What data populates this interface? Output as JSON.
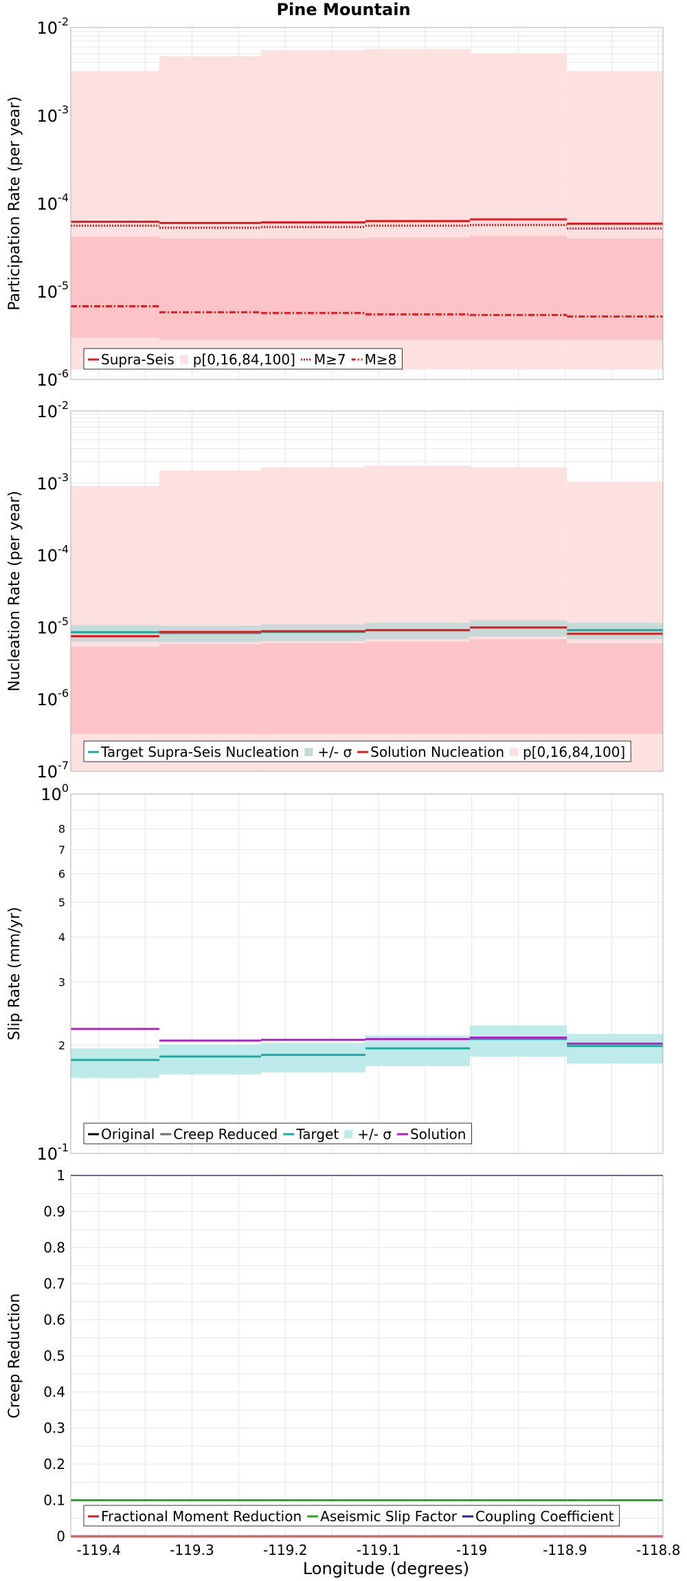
{
  "title": "Pine Mountain",
  "xaxis": {
    "label": "Longitude (degrees)",
    "range": [
      -119.43,
      -118.795
    ],
    "ticks": [
      "-119.4",
      "-119.3",
      "-119.2",
      "-119.1",
      "-119",
      "-118.9",
      "-118.8"
    ],
    "tick_values": [
      -119.4,
      -119.3,
      -119.2,
      -119.1,
      -119.0,
      -118.9,
      -118.8
    ]
  },
  "segments": [
    [
      -119.43,
      -119.335
    ],
    [
      -119.335,
      -119.226
    ],
    [
      -119.226,
      -119.114
    ],
    [
      -119.114,
      -119.002
    ],
    [
      -119.002,
      -118.898
    ],
    [
      -118.898,
      -118.795
    ]
  ],
  "colors": {
    "red": "#e31a1c",
    "pink_band": "#fde0e0",
    "pink_inner": "#fcc4c6",
    "teal": "#1ba9a0",
    "teal_band": "#bfeaea",
    "grey": "#6e6e6e",
    "grey_band": "#c9d9d9",
    "purple": "#b020c8",
    "green": "#22aa22",
    "blue": "#1f1f9f",
    "black": "#000000",
    "grid": "#e6e6e6"
  },
  "chart_data": [
    {
      "type": "line",
      "step": true,
      "ylabel": "Participation Rate (per year)",
      "yscale": "log",
      "ylim": [
        1e-06,
        0.01
      ],
      "ytick_exponents": [
        -6,
        -5,
        -4,
        -3,
        -2
      ],
      "series": [
        {
          "name": "Supra-Seis",
          "values": [
            6.2e-05,
            6e-05,
            6.1e-05,
            6.3e-05,
            6.6e-05,
            5.9e-05
          ]
        },
        {
          "name": "p[0,16,84,100]",
          "outer_low": [
            1.3e-06,
            1.3e-06,
            1.3e-06,
            1.3e-06,
            1.3e-06,
            1.3e-06
          ],
          "outer_high": [
            0.0032,
            0.0047,
            0.0055,
            0.0057,
            0.0051,
            0.0032
          ],
          "inner_low": [
            3e-06,
            2.8e-06,
            2.8e-06,
            2.8e-06,
            2.8e-06,
            2.8e-06
          ],
          "inner_high": [
            4.2e-05,
            4e-05,
            4e-05,
            4.1e-05,
            4.3e-05,
            4e-05
          ]
        },
        {
          "name": "M≥7",
          "values": [
            5.6e-05,
            5.3e-05,
            5.4e-05,
            5.6e-05,
            5.7e-05,
            5.2e-05
          ]
        },
        {
          "name": "M≥8",
          "values": [
            6.8e-06,
            5.8e-06,
            5.7e-06,
            5.5e-06,
            5.4e-06,
            5.2e-06
          ]
        }
      ]
    },
    {
      "type": "line",
      "step": true,
      "ylabel": "Nucleation Rate (per year)",
      "yscale": "log",
      "ylim": [
        1e-07,
        0.01
      ],
      "ytick_exponents": [
        -7,
        -6,
        -5,
        -4,
        -3,
        -2
      ],
      "series": [
        {
          "name": "Target Supra-Seis Nucleation",
          "values": [
            8.5e-06,
            8.3e-06,
            8.6e-06,
            9.1e-06,
            9.9e-06,
            9.1e-06
          ]
        },
        {
          "name": "+/- σ",
          "low": [
            6.3e-06,
            6.2e-06,
            6.4e-06,
            6.8e-06,
            7.4e-06,
            6.8e-06
          ],
          "high": [
            1.07e-05,
            1.05e-05,
            1.09e-05,
            1.15e-05,
            1.25e-05,
            1.15e-05
          ]
        },
        {
          "name": "Solution Nucleation",
          "values": [
            7.5e-06,
            8.6e-06,
            8.8e-06,
            9.1e-06,
            9.9e-06,
            8.1e-06
          ]
        },
        {
          "name": "p[0,16,84,100]",
          "outer_low": [
            1e-07,
            1e-07,
            1e-07,
            1e-07,
            1e-07,
            1e-07
          ],
          "outer_high": [
            0.0009,
            0.0015,
            0.00165,
            0.00175,
            0.00165,
            0.00105
          ],
          "inner_low": [
            3.3e-07,
            3.3e-07,
            3.3e-07,
            3.3e-07,
            3.3e-07,
            3.3e-07
          ],
          "inner_high": [
            5.3e-06,
            5.8e-06,
            6e-06,
            6.3e-06,
            6.8e-06,
            6e-06
          ]
        }
      ]
    },
    {
      "type": "line",
      "step": true,
      "ylabel": "Slip Rate (mm/yr)",
      "yscale": "log",
      "ylim": [
        1,
        10
      ],
      "exp_labels": [
        {
          "v": 1,
          "exp": "1"
        },
        {
          "v": 10,
          "exp": "0"
        }
      ],
      "minor_labels": [
        "2",
        "3",
        "4",
        "5",
        "6",
        "7",
        "8"
      ],
      "minor_values": [
        2,
        3,
        4,
        5,
        6,
        7,
        8
      ],
      "series": [
        {
          "name": "Original",
          "values": []
        },
        {
          "name": "Creep Reduced",
          "values": []
        },
        {
          "name": "Target",
          "values": [
            1.82,
            1.86,
            1.88,
            1.96,
            2.08,
            1.99
          ]
        },
        {
          "name": "+/- σ",
          "low": [
            1.62,
            1.66,
            1.68,
            1.75,
            1.86,
            1.78
          ],
          "high": [
            1.96,
            2.01,
            2.03,
            2.13,
            2.27,
            2.15
          ]
        },
        {
          "name": "Solution",
          "values": [
            2.22,
            2.06,
            2.07,
            2.08,
            2.1,
            2.02
          ]
        }
      ]
    },
    {
      "type": "line",
      "step": true,
      "xlabel": "Longitude (degrees)",
      "ylabel": "Creep Reduction",
      "ylim": [
        0,
        1
      ],
      "ytick_labels": [
        "0",
        "0.1",
        "0.2",
        "0.3",
        "0.4",
        "0.5",
        "0.6",
        "0.7",
        "0.8",
        "0.9",
        "1"
      ],
      "series": [
        {
          "name": "Fractional Moment Reduction",
          "values": [
            0,
            0,
            0,
            0,
            0,
            0
          ]
        },
        {
          "name": "Aseismic Slip Factor",
          "values": [
            0.1,
            0.1,
            0.1,
            0.1,
            0.1,
            0.1
          ]
        },
        {
          "name": "Coupling Coefficient",
          "values": [
            1,
            1,
            1,
            1,
            1,
            1
          ]
        }
      ]
    }
  ]
}
